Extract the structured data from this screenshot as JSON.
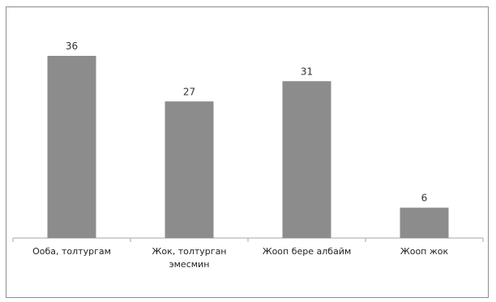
{
  "chart_data": {
    "type": "bar",
    "categories": [
      [
        "Ооба, толтургам"
      ],
      [
        "Жок, толтурган",
        "эмесмин"
      ],
      [
        "Жоop бере албайм"
      ],
      [
        "Жооп жок"
      ]
    ],
    "values": [
      36,
      27,
      31,
      6
    ],
    "data_labels": [
      "36",
      "27",
      "31",
      "6"
    ],
    "title": "",
    "xlabel": "",
    "ylabel": "",
    "ylim": [
      0,
      40
    ],
    "grid": false,
    "legend": "none",
    "bar_color": "#8c8c8c",
    "axis_color": "#a6a6a6"
  }
}
